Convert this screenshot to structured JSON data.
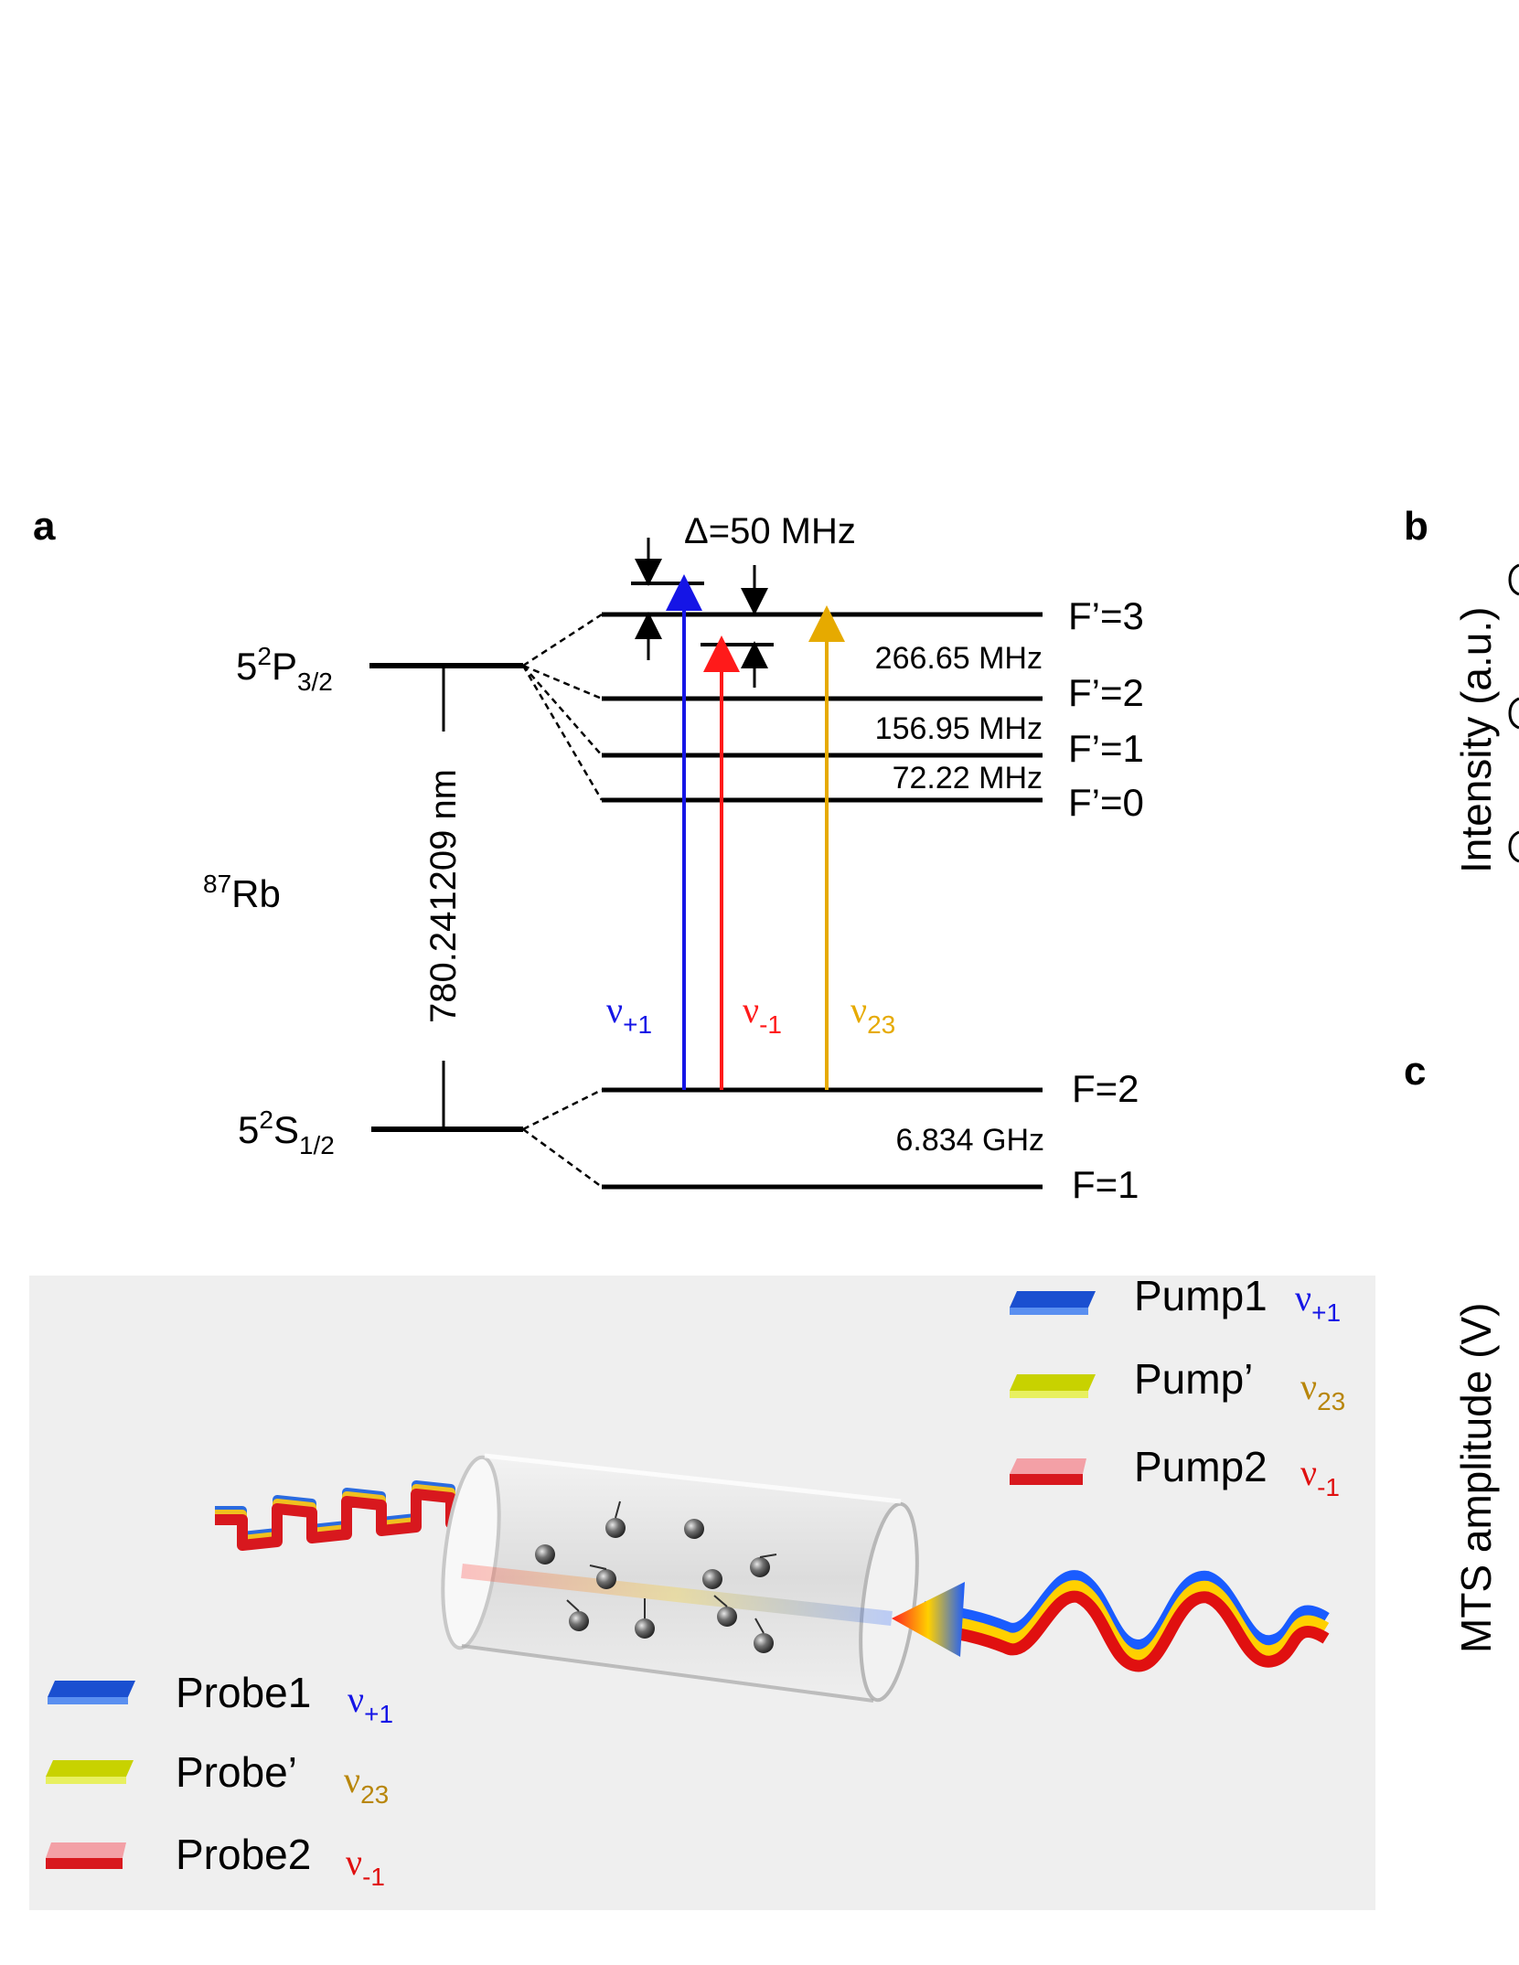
{
  "panels": {
    "a": "a",
    "b": "b",
    "c": "c"
  },
  "energy_levels": {
    "excited_state": {
      "n": "5",
      "sup": "2",
      "main": "P",
      "sub": "3/2"
    },
    "ground_state": {
      "n": "5",
      "sup": "2",
      "main": "S",
      "sub": "1/2"
    },
    "isotope": {
      "sup": "87",
      "main": "Rb"
    },
    "wavelength": "780.241209 nm",
    "detuning": "Δ=50 MHz",
    "hyperfine_excited": [
      {
        "label": "F’=3"
      },
      {
        "label": "F’=2"
      },
      {
        "label": "F’=1"
      },
      {
        "label": "F’=0"
      }
    ],
    "excited_splittings": [
      "266.65 MHz",
      "156.95 MHz",
      "72.22 MHz"
    ],
    "hyperfine_ground": [
      {
        "label": "F=2"
      },
      {
        "label": "F=1"
      }
    ],
    "ground_splitting": "6.834 GHz"
  },
  "transitions": [
    {
      "sym": "ν",
      "sub": "+1",
      "color": "#1515e6"
    },
    {
      "sym": "ν",
      "sub": "-1",
      "color": "#ff1a1a"
    },
    {
      "sym": "ν",
      "sub": "23",
      "color": "#e6aa00"
    }
  ],
  "pump_legend": [
    {
      "label": "Pump1",
      "sym": "ν",
      "sub": "+1",
      "color": "#1515e6",
      "bar_color": "#2a6be0"
    },
    {
      "label": "Pump’",
      "sym": "ν",
      "sub": "23",
      "color": "#b8860b",
      "bar_color": "#c8d200"
    },
    {
      "label": "Pump2",
      "sym": "ν",
      "sub": "-1",
      "color": "#e01010",
      "bar_color": "#d8181e"
    }
  ],
  "probe_legend": [
    {
      "label": "Probe1",
      "sym": "ν",
      "sub": "+1",
      "color": "#1515e6",
      "bar_color": "#2a6be0"
    },
    {
      "label": "Probe’",
      "sym": "ν",
      "sub": "23",
      "color": "#b8860b",
      "bar_color": "#c8d200"
    },
    {
      "label": "Probe2",
      "sym": "ν",
      "sub": "-1",
      "color": "#e01010",
      "bar_color": "#d8181e"
    }
  ],
  "axis_labels": {
    "b_y": "Intensity (a.u.)",
    "c_y": "MTS amplitude (V)"
  }
}
